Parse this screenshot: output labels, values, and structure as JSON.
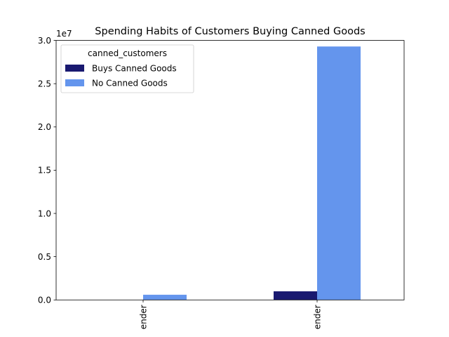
{
  "chart_data": {
    "type": "bar",
    "title": "Spending Habits of Customers Buying Canned Goods",
    "xlabel": "",
    "ylabel": "",
    "categories": [
      "ender",
      "ender"
    ],
    "category_label_rotation": -90,
    "y_offset_label": "1e7",
    "ylim": [
      0,
      3.0
    ],
    "yticks": [
      0.0,
      0.5,
      1.0,
      1.5,
      2.0,
      2.5,
      3.0
    ],
    "ytick_labels": [
      "0.0",
      "0.5",
      "1.0",
      "1.5",
      "2.0",
      "2.5",
      "3.0"
    ],
    "grid": false,
    "legend": {
      "title": "canned_customers",
      "placement": "top-left"
    },
    "series": [
      {
        "name": "Buys Canned Goods",
        "color": "#191970",
        "values": [
          0.0,
          0.1
        ]
      },
      {
        "name": "No Canned Goods",
        "color": "#6495ED",
        "values": [
          0.06,
          2.93
        ]
      }
    ]
  }
}
